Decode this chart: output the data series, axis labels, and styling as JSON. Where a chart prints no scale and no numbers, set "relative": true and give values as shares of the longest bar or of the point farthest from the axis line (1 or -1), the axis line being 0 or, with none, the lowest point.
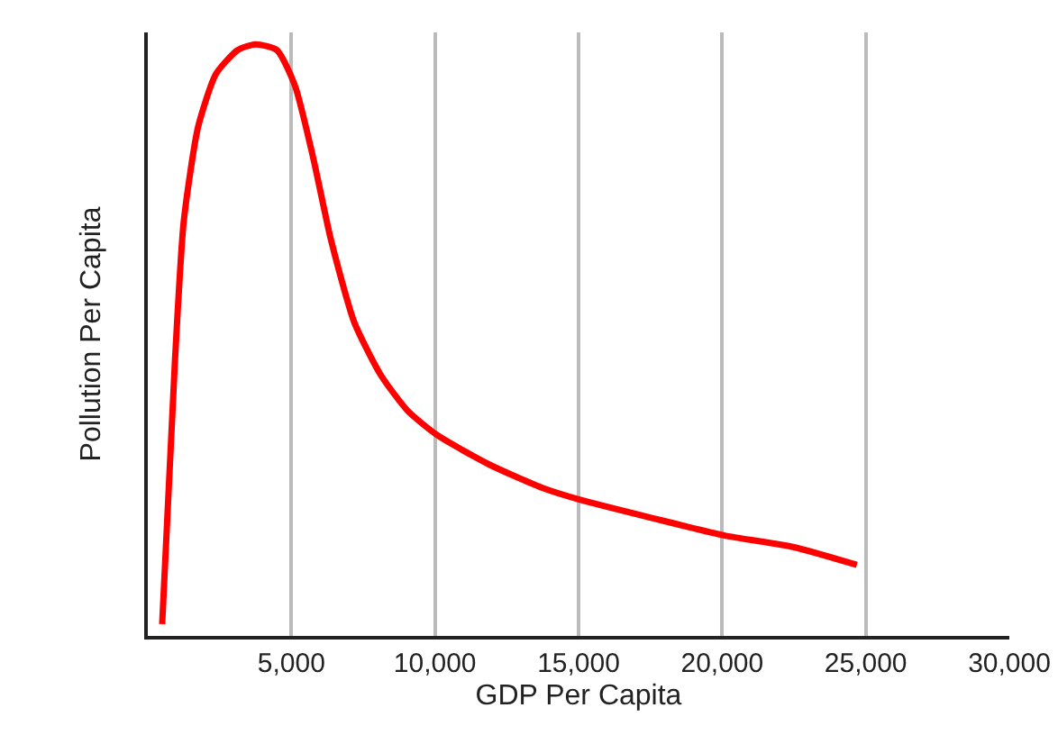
{
  "chart_data": {
    "type": "line",
    "relative": true,
    "xlabel": "GDP Per Capita",
    "ylabel": "Pollution Per Capita",
    "x": [
      500,
      940,
      1250,
      1750,
      2375,
      3125,
      3750,
      4500,
      5125,
      5750,
      6375,
      7190,
      8125,
      9060,
      10060,
      11875,
      13750,
      15060,
      17500,
      20060,
      22500,
      24690
    ],
    "series": [
      {
        "color": "#ff0000",
        "values": [
          0.02,
          0.46,
          0.7,
          0.86,
          0.95,
          0.99,
          1.0,
          0.99,
          0.93,
          0.81,
          0.67,
          0.53,
          0.44,
          0.38,
          0.34,
          0.29,
          0.25,
          0.23,
          0.2,
          0.17,
          0.15,
          0.12
        ]
      }
    ],
    "xlim": [
      0,
      30000
    ],
    "xticks": [
      {
        "value": 5000,
        "label": "5,000"
      },
      {
        "value": 10000,
        "label": "10,000"
      },
      {
        "value": 15000,
        "label": "15,000"
      },
      {
        "value": 20000,
        "label": "20,000"
      },
      {
        "value": 25000,
        "label": "25,000"
      },
      {
        "value": 30000,
        "label": "30,000"
      }
    ],
    "grid": "x",
    "marker": "none",
    "line_style": "solid"
  }
}
